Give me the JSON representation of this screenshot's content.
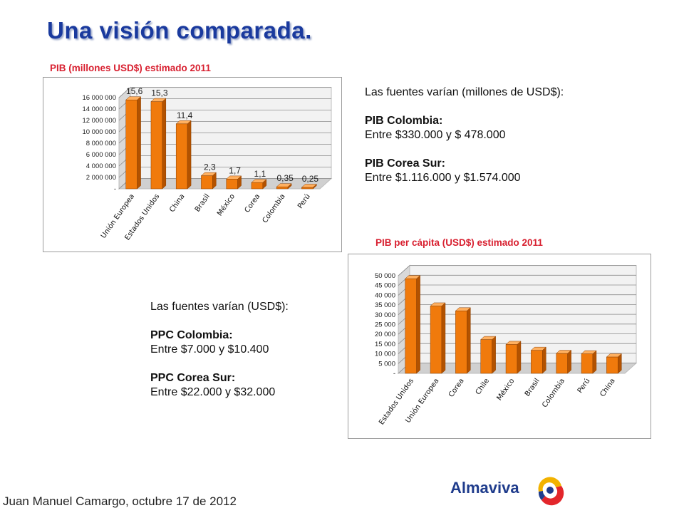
{
  "title": "Una visión comparada.",
  "footer": "Juan Manuel Camargo, octubre 17 de 2012",
  "logo": {
    "text": "Almaviva"
  },
  "colors": {
    "title": "#1a3a9e",
    "heading": "#d82030",
    "bar_front": "#f07a0c",
    "bar_side": "#b35200",
    "bar_top": "#ffb060"
  },
  "info_gdp": {
    "intro": "Las fuentes varían (millones de USD$):",
    "colombia_label": "PIB Colombia:",
    "colombia_range": "Entre $330.000 y $ 478.000",
    "korea_label": "PIB Corea Sur:",
    "korea_range": "Entre $1.116.000 y $1.574.000"
  },
  "info_ppc": {
    "intro": "Las fuentes varían (USD$):",
    "colombia_label": "PPC Colombia:",
    "colombia_range": "Entre $7.000 y $10.400",
    "korea_label": "PPC Corea Sur:",
    "korea_range": "Entre $22.000 y $32.000"
  },
  "chart_data": [
    {
      "type": "bar",
      "title": "PIB (millones USD$) estimado 2011",
      "categories": [
        "Unión Europea",
        "Estados Unidos",
        "China",
        "Brasil",
        "México",
        "Corea",
        "Colombia",
        "Perú"
      ],
      "values": [
        15600000,
        15300000,
        11400000,
        2300000,
        1700000,
        1100000,
        350000,
        250000
      ],
      "data_labels": [
        "15,6",
        "15,3",
        "11,4",
        "2,3",
        "1,7",
        "1,1",
        "0,35",
        "0,25"
      ],
      "ylim": [
        0,
        16000000
      ],
      "yticks": [
        0,
        2000000,
        4000000,
        6000000,
        8000000,
        10000000,
        12000000,
        14000000,
        16000000
      ],
      "ytick_labels": [
        "-",
        "2 000 000",
        "4 000 000",
        "6 000 000",
        "8 000 000",
        "10 000 000",
        "12 000 000",
        "14 000 000",
        "16 000 000"
      ],
      "grid": true,
      "style": "3d"
    },
    {
      "type": "bar",
      "title": "PIB per cápita (USD$) estimado 2011",
      "categories": [
        "Estados Unidos",
        "Unión Europea",
        "Corea",
        "Chile",
        "México",
        "Brasil",
        "Colombia",
        "Perú",
        "China"
      ],
      "values": [
        48500,
        34500,
        32000,
        17300,
        14800,
        11800,
        10200,
        10000,
        8400
      ],
      "ylim": [
        0,
        50000
      ],
      "yticks": [
        0,
        5000,
        10000,
        15000,
        20000,
        25000,
        30000,
        35000,
        40000,
        45000,
        50000
      ],
      "ytick_labels": [
        "-",
        "5 000",
        "10 000",
        "15 000",
        "20 000",
        "25 000",
        "30 000",
        "35 000",
        "40 000",
        "45 000",
        "50 000"
      ],
      "grid": true,
      "style": "3d"
    }
  ]
}
